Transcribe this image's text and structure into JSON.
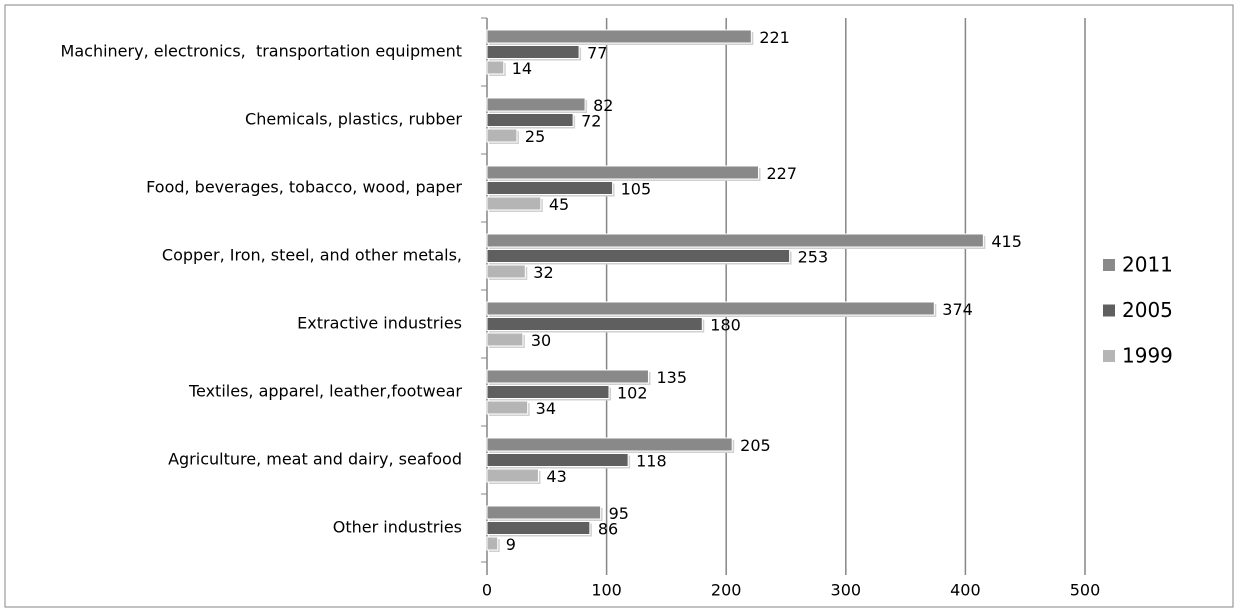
{
  "chart_data": {
    "type": "bar",
    "orientation": "horizontal",
    "categories": [
      "Machinery, electronics,  transportation equipment",
      "Chemicals, plastics, rubber",
      "Food, beverages, tobacco, wood, paper",
      "Copper, Iron, steel, and other metals,",
      "Extractive industries",
      "Textiles, apparel, leather,footwear",
      "Agriculture, meat and dairy, seafood",
      "Other industries"
    ],
    "series": [
      {
        "name": "2011",
        "color": "#898989",
        "values": [
          221,
          82,
          227,
          415,
          374,
          135,
          205,
          95
        ]
      },
      {
        "name": "2005",
        "color": "#5f5f5f",
        "values": [
          77,
          72,
          105,
          253,
          180,
          102,
          118,
          86
        ]
      },
      {
        "name": "1999",
        "color": "#b5b5b5",
        "values": [
          14,
          25,
          45,
          32,
          30,
          34,
          43,
          9
        ]
      }
    ],
    "xlim": [
      0,
      500
    ],
    "xticks": [
      0,
      100,
      200,
      300,
      400,
      500
    ],
    "grid": true,
    "legend": "right"
  }
}
